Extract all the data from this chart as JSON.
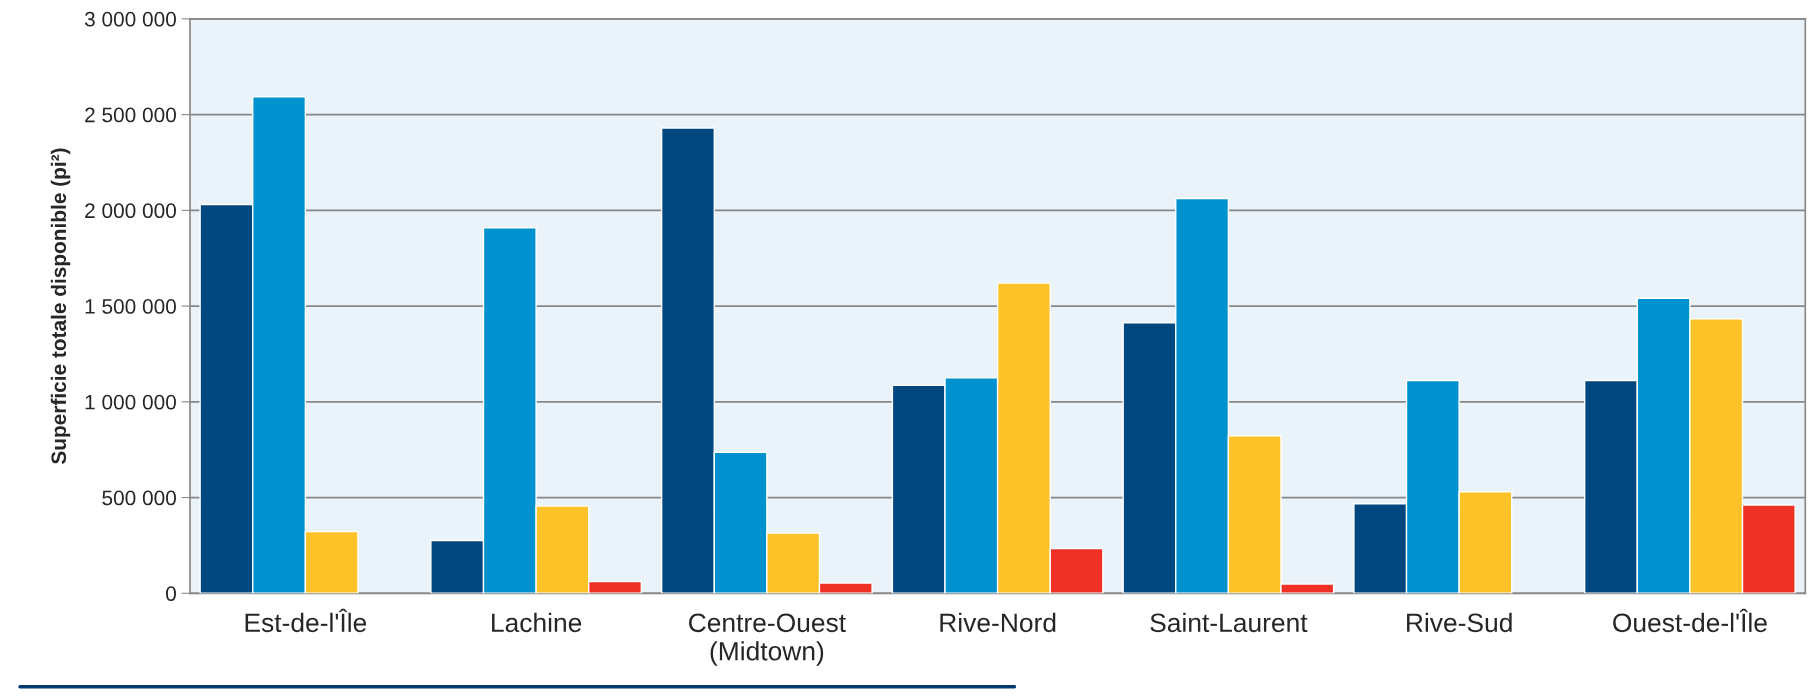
{
  "chart_data": {
    "type": "bar",
    "ylabel": "Superficie totale disponible (pi²)",
    "categories": [
      "Est-de-l'Île",
      "Lachine",
      "Centre-Ouest\n(Midtown)",
      "Rive-Nord",
      "Saint-Laurent",
      "Rive-Sud",
      "Ouest-de-l'Île"
    ],
    "series": [
      {
        "color": "#00467f",
        "values": [
          2030000,
          276000,
          2430000,
          1086000,
          1413000,
          468000,
          1111000
        ]
      },
      {
        "color": "#0092cf",
        "values": [
          2593000,
          1909000,
          736000,
          1125000,
          2062000,
          1111000,
          1541000
        ]
      },
      {
        "color": "#fdc228",
        "values": [
          322000,
          456000,
          314000,
          1620000,
          823000,
          530000,
          1434000
        ]
      },
      {
        "color": "#ee3124",
        "values": [
          null,
          61000,
          54000,
          234000,
          48000,
          null,
          461000
        ]
      }
    ],
    "ylim": [
      0,
      3000000
    ],
    "yticks": [
      {
        "value": 0,
        "label": "0"
      },
      {
        "value": 500000,
        "label": "500 000"
      },
      {
        "value": 1000000,
        "label": "1 000 000"
      },
      {
        "value": 1500000,
        "label": "1 500 000"
      },
      {
        "value": 2000000,
        "label": "2 000 000"
      },
      {
        "value": 2500000,
        "label": "2 500 000"
      },
      {
        "value": 3000000,
        "label": "3 000 000"
      }
    ],
    "grid": "y"
  }
}
